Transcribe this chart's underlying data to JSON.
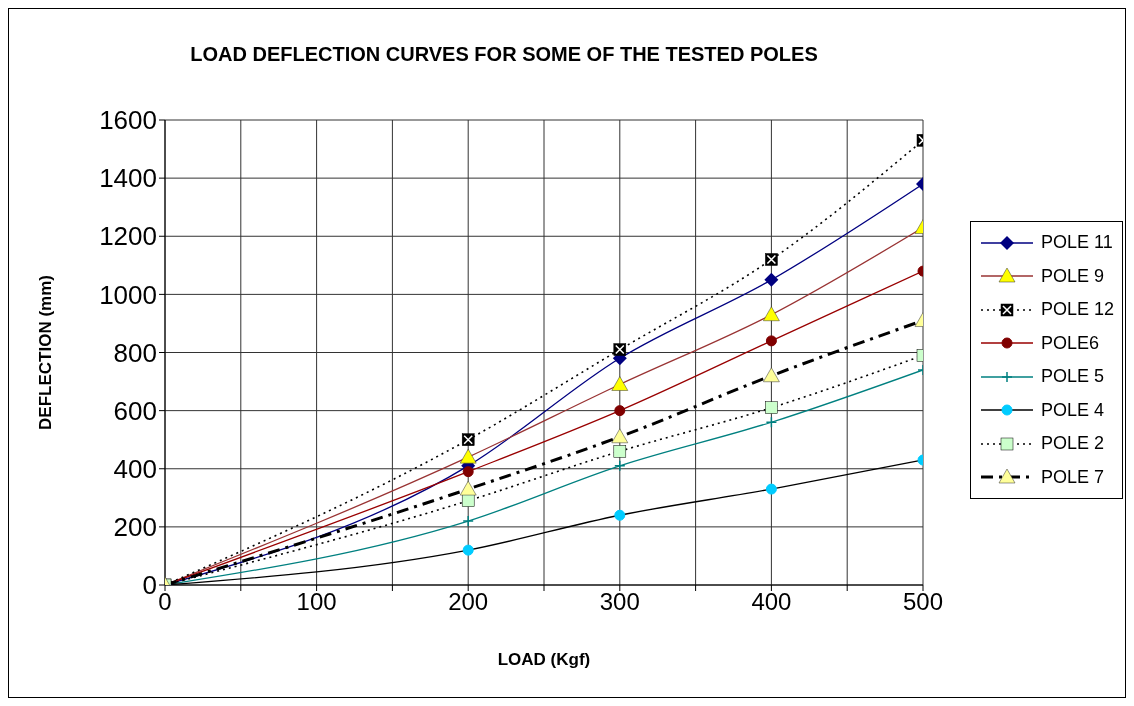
{
  "chart_data": {
    "type": "line",
    "title": "LOAD DEFLECTION CURVES FOR SOME OF THE TESTED POLES",
    "xlabel": "LOAD (Kgf)",
    "ylabel": "DEFLECTION (mm)",
    "x": [
      0,
      200,
      300,
      400,
      500
    ],
    "xlim": [
      0,
      500
    ],
    "xticks": [
      0,
      {
        "value": 50,
        "label": null
      },
      100,
      {
        "value": 150,
        "label": null
      },
      200,
      {
        "value": 250,
        "label": null
      },
      300,
      {
        "value": 350,
        "label": null
      },
      400,
      {
        "value": 450,
        "label": null
      },
      500
    ],
    "ylim": [
      0,
      1600
    ],
    "yticks": [
      0,
      200,
      400,
      600,
      800,
      1000,
      1200,
      1400,
      1600
    ],
    "grid": true,
    "legend": "right",
    "series": [
      {
        "name": "POLE 11",
        "color": "#000080",
        "marker": "diamond",
        "line_style": "solid",
        "colors": [
          "#000080",
          "#000080",
          "#000080",
          "#000080",
          "#000080"
        ],
        "values": [
          0,
          410,
          780,
          1050,
          1380
        ]
      },
      {
        "name": "POLE 9",
        "color": "#993333",
        "marker": "triangle",
        "line_style": "solid",
        "colors": [
          "#ffff00",
          "#ffff00",
          "#ffff00",
          "#ffff00",
          "#ffff00"
        ],
        "values": [
          0,
          440,
          690,
          930,
          1230
        ]
      },
      {
        "name": "POLE 12",
        "color": "#000000",
        "marker": "square",
        "line_style": "dotted",
        "colors": [
          "#000000",
          "#000000",
          "#000000",
          "#000000",
          "#000000"
        ],
        "values": [
          0,
          500,
          810,
          1120,
          1530
        ]
      },
      {
        "name": "POLE6",
        "color": "#990000",
        "marker": "circle",
        "line_style": "solid",
        "colors": [
          "#800000",
          "#800000",
          "#800000",
          "#800000",
          "#800000"
        ],
        "values": [
          0,
          390,
          600,
          840,
          1080
        ]
      },
      {
        "name": "POLE 5",
        "color": "#008080",
        "marker": "cross",
        "line_style": "solid",
        "colors": [
          "#008080",
          "#008080",
          "#008080",
          "#008080",
          "#008080"
        ],
        "values": [
          0,
          220,
          410,
          560,
          740
        ]
      },
      {
        "name": "POLE 4",
        "color": "#000000",
        "marker": "circle",
        "line_style": "solid",
        "colors": [
          "#00ccff",
          "#00ccff",
          "#00ccff",
          "#00ccff",
          "#00ccff"
        ],
        "values": [
          0,
          120,
          240,
          330,
          430
        ]
      },
      {
        "name": "POLE 2",
        "color": "#000000",
        "marker": "square",
        "line_style": "dotted",
        "colors": [
          "#ccffcc",
          "#ccffcc",
          "#ccffcc",
          "#ccffcc",
          "#ccffcc"
        ],
        "values": [
          0,
          290,
          460,
          610,
          790
        ]
      },
      {
        "name": "POLE 7",
        "color": "#000000",
        "marker": "triangle",
        "line_style": "dashed",
        "colors": [
          "#ffff99",
          "#ffff99",
          "#ffff99",
          "#ffff99",
          "#ffff99"
        ],
        "values": [
          0,
          330,
          510,
          720,
          910
        ]
      }
    ]
  }
}
